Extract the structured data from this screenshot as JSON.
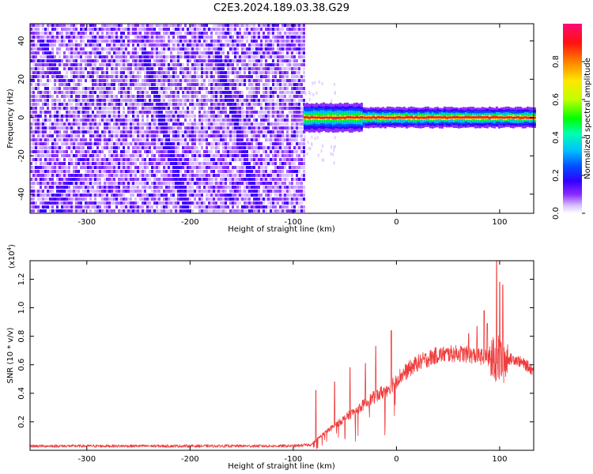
{
  "title": "C2E3.2024.189.03.38.G29",
  "chart_data": [
    {
      "type": "heatmap",
      "xlabel": "Height of straight line (km)",
      "ylabel": "Frequency (Hz)",
      "xlim": [
        -355,
        133
      ],
      "ylim": [
        -50,
        49
      ],
      "xticks": [
        -300,
        -200,
        -100,
        0,
        100
      ],
      "yticks": [
        -40,
        -20,
        0,
        20,
        40
      ],
      "colorbar": {
        "label": "Normalized spectral amplitude",
        "range": [
          0,
          1
        ],
        "ticks": [
          "0.0",
          "0.2",
          "0.4",
          "0.6",
          "0.8"
        ],
        "colors": [
          "#ffffff",
          "#d9c2ff",
          "#7b00ff",
          "#3300ff",
          "#0044ff",
          "#00c0ff",
          "#00ffb0",
          "#00ff00",
          "#c0ff00",
          "#ffe600",
          "#ff8000",
          "#ff0000",
          "#ff0080"
        ]
      },
      "features": {
        "noise_region_x": [
          -355,
          -90
        ],
        "signal_line_x": [
          -90,
          133
        ],
        "signal_line_frequency_hz": 0,
        "signal_halfwidth_hz": 4,
        "diagonal_streaks": [
          {
            "x": [
              -175,
              -135
            ],
            "y": [
              35,
              -45
            ]
          },
          {
            "x": [
              -245,
              -205
            ],
            "y": [
              35,
              -48
            ]
          },
          {
            "x": [
              -345,
              -310
            ],
            "y": [
              -48,
              -28
            ]
          },
          {
            "x": [
              -345,
              -325
            ],
            "y": [
              40,
              20
            ]
          }
        ]
      },
      "grid": false
    },
    {
      "type": "line",
      "xlabel": "Height of straight line (km)",
      "ylabel": "SNR (10 * v/v)",
      "y_multiplier": "(x10",
      "y_multiplier_exp": "4",
      "y_multiplier_close": ")",
      "xlim": [
        -355,
        133
      ],
      "ylim": [
        0,
        1.33
      ],
      "xticks": [
        -300,
        -200,
        -100,
        0,
        100
      ],
      "yticks": [
        "0.2",
        "0.4",
        "0.6",
        "0.8",
        "1.0",
        "1.2"
      ],
      "series": [
        {
          "color": "#ef3b3b",
          "envelope": {
            "x": [
              -355,
              -100,
              -83,
              -70,
              -55,
              -40,
              -25,
              -10,
              0,
              20,
              40,
              60,
              80,
              95,
              105,
              115,
              125,
              133
            ],
            "y": [
              0.03,
              0.03,
              0.04,
              0.12,
              0.2,
              0.28,
              0.36,
              0.43,
              0.5,
              0.61,
              0.67,
              0.68,
              0.66,
              0.63,
              0.64,
              0.64,
              0.6,
              0.56
            ]
          },
          "spikes": [
            {
              "x": -78,
              "y": 0.42
            },
            {
              "x": -60,
              "y": 0.48
            },
            {
              "x": -45,
              "y": 0.58
            },
            {
              "x": -30,
              "y": 0.61
            },
            {
              "x": -20,
              "y": 0.73
            },
            {
              "x": -5,
              "y": 0.84
            },
            {
              "x": 70,
              "y": 0.82
            },
            {
              "x": 78,
              "y": 0.87
            },
            {
              "x": 85,
              "y": 0.98
            },
            {
              "x": 88,
              "y": 0.89
            },
            {
              "x": 97,
              "y": 1.33
            },
            {
              "x": 100,
              "y": 1.18
            },
            {
              "x": 103,
              "y": 1.16
            }
          ]
        }
      ],
      "grid": false
    }
  ]
}
